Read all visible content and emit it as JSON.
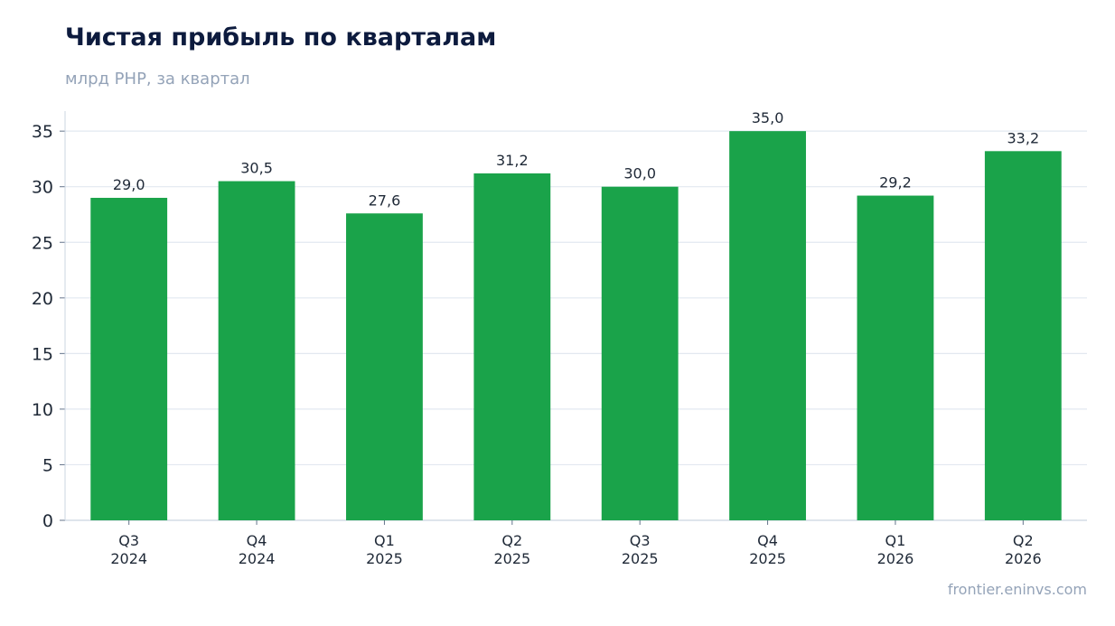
{
  "header": {
    "title": "Чистая прибыль по кварталам",
    "subtitle": "млрд PHP, за квартал"
  },
  "footer": {
    "source": "frontier.eninvs.com"
  },
  "colors": {
    "bar": "#1aa34a",
    "grid": "#e2e8f0",
    "axis": "#cbd5e1"
  },
  "chart_data": {
    "type": "bar",
    "title": "Чистая прибыль по кварталам",
    "subtitle": "млрд PHP, за квартал",
    "categories": [
      "Q3\n2024",
      "Q4\n2024",
      "Q1\n2025",
      "Q2\n2025",
      "Q3\n2025",
      "Q4\n2025",
      "Q1\n2026",
      "Q2\n2026"
    ],
    "values": [
      29.0,
      30.5,
      27.6,
      31.2,
      30.0,
      35.0,
      29.2,
      33.2
    ],
    "value_labels": [
      "29,0",
      "30,5",
      "27,6",
      "31,2",
      "30,0",
      "35,0",
      "29,2",
      "33,2"
    ],
    "yticks": [
      0,
      5,
      10,
      15,
      20,
      25,
      30,
      35
    ],
    "ylim": [
      0,
      36.8
    ],
    "grid": true,
    "legend": "none"
  }
}
